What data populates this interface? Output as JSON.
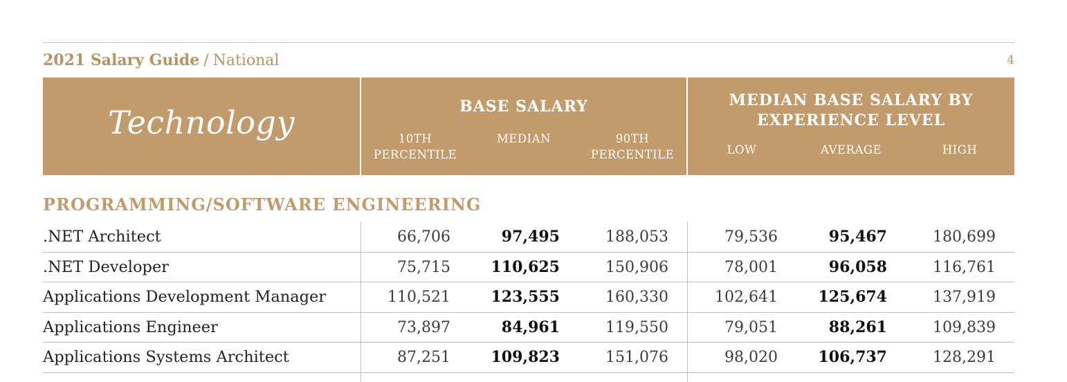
{
  "page": {
    "guide_title": "2021 Salary Guide",
    "guide_separator": "/",
    "guide_region": "National",
    "page_number": "4"
  },
  "header": {
    "section": "Technology",
    "base_salary": {
      "title": "BASE SALARY",
      "col1": [
        "10TH",
        "PERCENTILE"
      ],
      "col2": [
        "MEDIAN"
      ],
      "col3": [
        "90TH",
        "PERCENTILE"
      ]
    },
    "experience": {
      "title": [
        "MEDIAN BASE SALARY BY",
        "EXPERIENCE LEVEL"
      ],
      "low": "LOW",
      "average": "AVERAGE",
      "high": "HIGH"
    }
  },
  "category": "PROGRAMMING/SOFTWARE ENGINEERING",
  "rows": [
    {
      "title": ".NET Architect",
      "p10": "66,706",
      "median": "97,495",
      "p90": "188,053",
      "low": "79,536",
      "avg": "95,467",
      "high": "180,699"
    },
    {
      "title": ".NET Developer",
      "p10": "75,715",
      "median": "110,625",
      "p90": "150,906",
      "low": "78,001",
      "avg": "96,058",
      "high": "116,761"
    },
    {
      "title": "Applications Development Manager",
      "p10": "110,521",
      "median": "123,555",
      "p90": "160,330",
      "low": "102,641",
      "avg": "125,674",
      "high": "137,919"
    },
    {
      "title": "Applications Engineer",
      "p10": "73,897",
      "median": "84,961",
      "p90": "119,550",
      "low": "79,051",
      "avg": "88,261",
      "high": "109,839"
    },
    {
      "title": "Applications Systems Architect",
      "p10": "87,251",
      "median": "109,823",
      "p90": "151,076",
      "low": "98,020",
      "avg": "106,737",
      "high": "128,291"
    }
  ],
  "colors": {
    "accent": "#c29b6c",
    "accent_text": "#b9935f",
    "rule": "#bdbdbd"
  }
}
